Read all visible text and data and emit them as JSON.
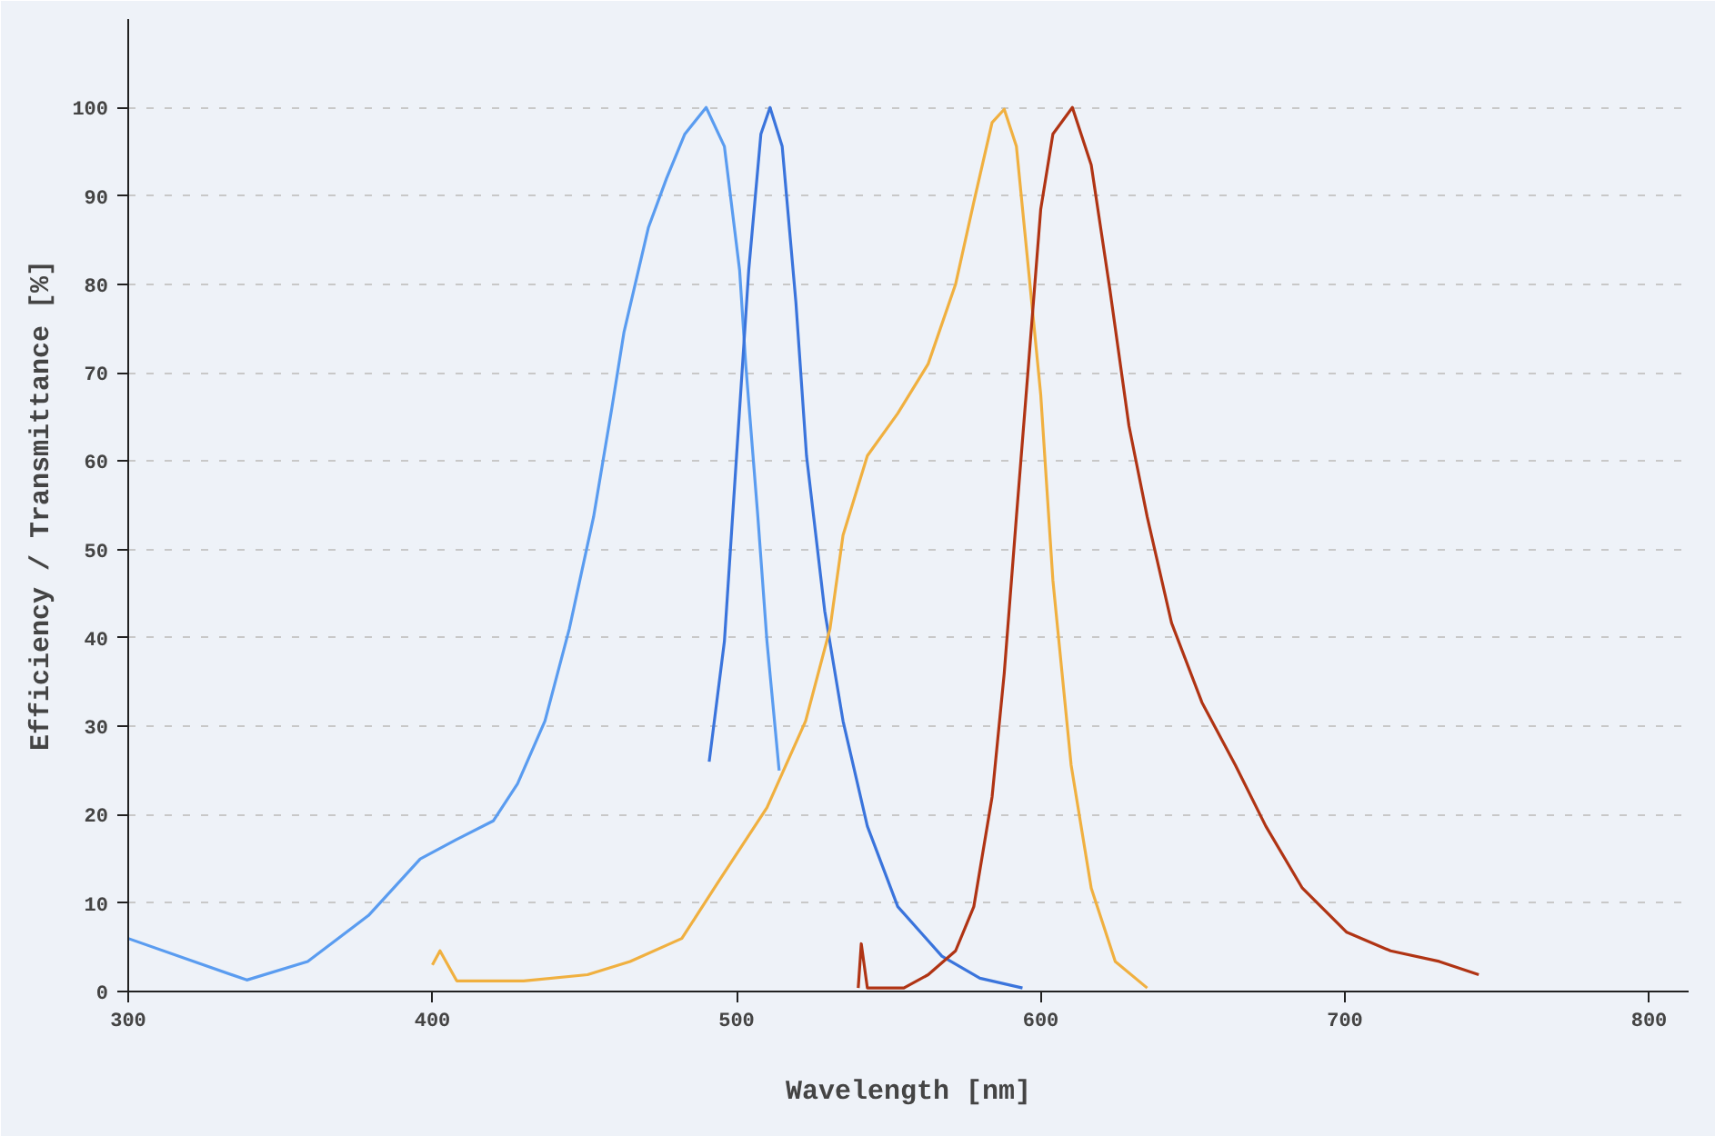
{
  "chart_data": {
    "type": "line",
    "xlabel": "Wavelength [nm]",
    "ylabel": "Efficiency / Transmittance [%]",
    "xlim": [
      300,
      813
    ],
    "ylim": [
      0,
      110
    ],
    "xticks": [
      300,
      400,
      500,
      600,
      700,
      800
    ],
    "yticks": [
      0,
      10,
      20,
      30,
      40,
      50,
      60,
      70,
      80,
      90,
      100
    ],
    "grid": "y",
    "line_style": "solid",
    "series": [
      {
        "color": "#5a9cf0",
        "x": [
          300,
          339,
          359,
          379,
          396,
          408,
          420,
          428,
          437,
          445,
          453,
          459,
          463,
          471,
          477,
          483,
          490,
          496,
          501,
          503,
          507,
          510,
          514
        ],
        "values": [
          6,
          1.3,
          3.4,
          8.6,
          15,
          17.2,
          19.3,
          23.5,
          30.6,
          41,
          53.7,
          66,
          74.6,
          86.4,
          92,
          97,
          100,
          95.6,
          81.6,
          71,
          53.7,
          39.6,
          25
        ]
      },
      {
        "color": "#3a74dc",
        "x": [
          491,
          496,
          500,
          504,
          508,
          511,
          515,
          519.5,
          523,
          529,
          535,
          543,
          553,
          567.5,
          580,
          594
        ],
        "values": [
          26,
          39.6,
          60.6,
          81.6,
          97,
          100,
          95.6,
          78,
          60.6,
          43,
          30.6,
          18.7,
          9.6,
          4,
          1.5,
          0.4
        ]
      },
      {
        "color": "#f0b040",
        "x": [
          400,
          402.5,
          408,
          430,
          451,
          465,
          482,
          494,
          510,
          522.7,
          530.7,
          535,
          543,
          553,
          563,
          572,
          578,
          584,
          588,
          592,
          596,
          600,
          604,
          610,
          616.6,
          624.5,
          635
        ],
        "values": [
          3,
          4.6,
          1.2,
          1.2,
          1.9,
          3.4,
          6,
          12.4,
          20.8,
          30.6,
          41,
          51.6,
          60.6,
          65.4,
          71,
          80,
          89.3,
          98.3,
          99.8,
          95.6,
          81.6,
          67.5,
          46.5,
          25.6,
          11.7,
          3.4,
          0.4
        ]
      },
      {
        "color": "#b03414",
        "x": [
          540,
          541,
          543,
          555,
          563,
          572,
          578,
          584,
          588,
          592,
          596,
          600,
          604,
          610.4,
          616.6,
          622.7,
          629,
          635,
          643,
          653,
          664,
          674,
          686,
          700.6,
          715,
          731,
          744
        ],
        "values": [
          0.4,
          5.4,
          0.4,
          0.4,
          1.9,
          4.6,
          9.6,
          22,
          36,
          53.7,
          71,
          88.5,
          97,
          100,
          93.5,
          79.5,
          64,
          53.7,
          41.7,
          32.7,
          25.6,
          18.7,
          11.7,
          6.7,
          4.6,
          3.4,
          1.9
        ]
      }
    ]
  }
}
